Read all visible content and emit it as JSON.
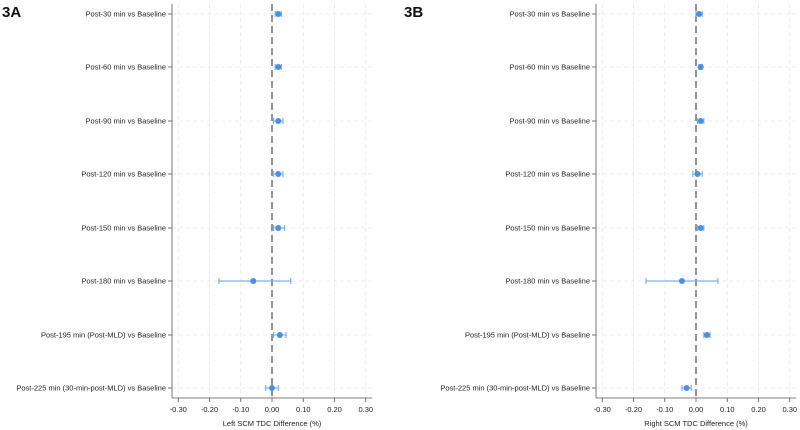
{
  "colors": {
    "point": "#4a90e2",
    "ci": "#7fb2e8",
    "reference": "#666666"
  },
  "chart_data": [
    {
      "type": "forest",
      "panel_label": "3A",
      "xlabel": "Left SCM TDC Difference (%)",
      "xlim": [
        -0.32,
        0.32
      ],
      "xticks": [
        "-0.30",
        "-0.20",
        "-0.10",
        "0.00",
        "0.10",
        "0.20",
        "0.30"
      ],
      "reference_x": 0,
      "rows": [
        {
          "label": "Post-30 min vs Baseline",
          "estimate": 0.02,
          "lower": 0.01,
          "upper": 0.03
        },
        {
          "label": "Post-60 min vs Baseline",
          "estimate": 0.02,
          "lower": 0.01,
          "upper": 0.03
        },
        {
          "label": "Post-90 min vs Baseline",
          "estimate": 0.02,
          "lower": 0.005,
          "upper": 0.035
        },
        {
          "label": "Post-120 min vs Baseline",
          "estimate": 0.02,
          "lower": 0.005,
          "upper": 0.035
        },
        {
          "label": "Post-150 min vs Baseline",
          "estimate": 0.02,
          "lower": 0.005,
          "upper": 0.04
        },
        {
          "label": "Post-180 min vs Baseline",
          "estimate": -0.06,
          "lower": -0.17,
          "upper": 0.06
        },
        {
          "label": "Post-195 min (Post-MLD) vs Baseline",
          "estimate": 0.025,
          "lower": 0.005,
          "upper": 0.045
        },
        {
          "label": "Post-225 min (30-min-post-MLD) vs Baseline",
          "estimate": 0.0,
          "lower": -0.02,
          "upper": 0.02
        }
      ]
    },
    {
      "type": "forest",
      "panel_label": "3B",
      "xlabel": "Right SCM TDC Difference (%)",
      "xlim": [
        -0.32,
        0.32
      ],
      "xticks": [
        "-0.30",
        "-0.20",
        "-0.10",
        "0.00",
        "0.10",
        "0.20",
        "0.30"
      ],
      "reference_x": 0,
      "rows": [
        {
          "label": "Post-30 min vs Baseline",
          "estimate": 0.01,
          "lower": 0.0,
          "upper": 0.02
        },
        {
          "label": "Post-60 min vs Baseline",
          "estimate": 0.015,
          "lower": 0.01,
          "upper": 0.02
        },
        {
          "label": "Post-90 min vs Baseline",
          "estimate": 0.015,
          "lower": 0.005,
          "upper": 0.025
        },
        {
          "label": "Post-120 min vs Baseline",
          "estimate": 0.005,
          "lower": -0.01,
          "upper": 0.02
        },
        {
          "label": "Post-150 min vs Baseline",
          "estimate": 0.015,
          "lower": 0.005,
          "upper": 0.025
        },
        {
          "label": "Post-180 min vs Baseline",
          "estimate": -0.045,
          "lower": -0.16,
          "upper": 0.07
        },
        {
          "label": "Post-195 min (Post-MLD) vs Baseline",
          "estimate": 0.035,
          "lower": 0.025,
          "upper": 0.045
        },
        {
          "label": "Post-225 min (30-min-post-MLD) vs Baseline",
          "estimate": -0.03,
          "lower": -0.045,
          "upper": -0.015
        }
      ]
    }
  ]
}
